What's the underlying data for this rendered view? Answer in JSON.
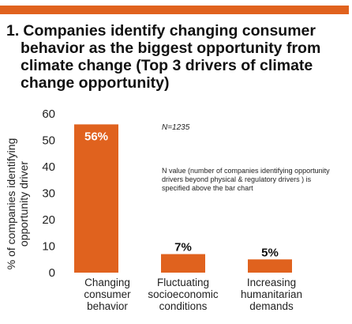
{
  "colors": {
    "accent": "#E0621E",
    "text": "#111111"
  },
  "header": {
    "number": "1.",
    "title_lines": [
      "Companies identify changing consumer",
      "behavior as the biggest opportunity from",
      "climate change (Top 3 drivers of climate",
      "change opportunity)"
    ]
  },
  "chart_data": {
    "type": "bar",
    "categories": [
      [
        "Changing",
        "consumer",
        "behavior"
      ],
      [
        "Fluctuating",
        "socioeconomic",
        "conditions"
      ],
      [
        "Increasing",
        "humanitarian",
        "demands"
      ]
    ],
    "values": [
      56,
      7,
      5
    ],
    "data_labels": [
      "56%",
      "7%",
      "5%"
    ],
    "ylabel_lines": [
      "% of companies identifying",
      "opportunity driver"
    ],
    "yticks": [
      0,
      10,
      20,
      30,
      40,
      50,
      60
    ],
    "ylim": [
      0,
      60
    ],
    "grid": false,
    "annotations": {
      "n_value": "N=1235",
      "note_lines": [
        "N value (number of companies identifying opportunity",
        "drivers beyond physical & regulatory drivers ) is",
        "specified above the bar chart"
      ]
    }
  }
}
